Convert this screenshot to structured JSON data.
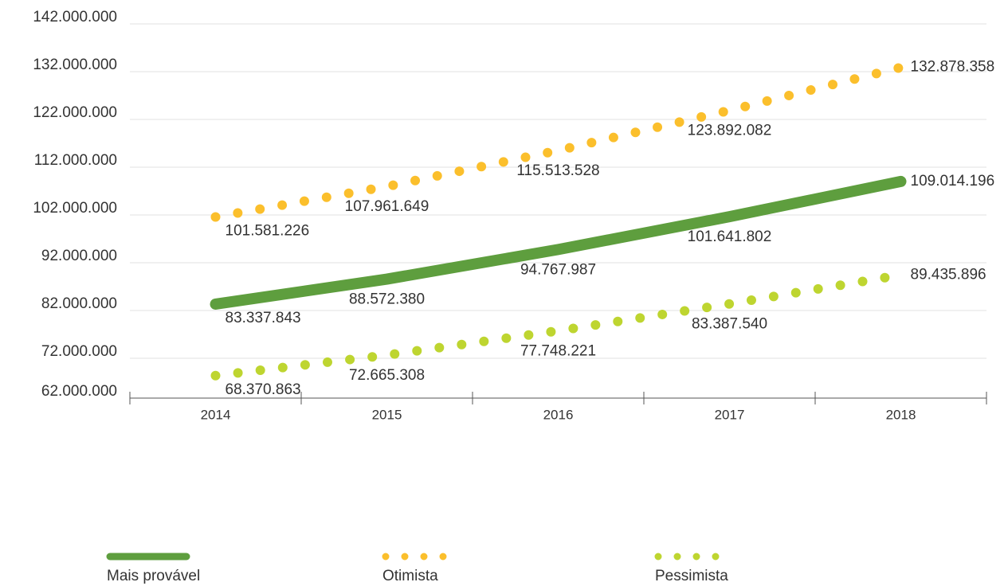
{
  "chart_data": {
    "type": "line",
    "categories": [
      "2014",
      "2015",
      "2016",
      "2017",
      "2018"
    ],
    "series": [
      {
        "name": "Mais provável",
        "color": "#5e9e3e",
        "style": "solid",
        "values": [
          83337843,
          88572380,
          94767987,
          101641802,
          109014196
        ],
        "value_labels": [
          "83.337.843",
          "88.572.380",
          "94.767.987",
          "101.641.802",
          "109.014.196"
        ]
      },
      {
        "name": "Otimista",
        "color": "#fbbf2c",
        "style": "dotted",
        "values": [
          101581226,
          107961649,
          115513528,
          123892082,
          132878358
        ],
        "value_labels": [
          "101.581.226",
          "107.961.649",
          "115.513.528",
          "123.892.082",
          "132.878.358"
        ]
      },
      {
        "name": "Pessimista",
        "color": "#bed530",
        "style": "dotted",
        "values": [
          68370863,
          72665308,
          77748221,
          83387540,
          89435896
        ],
        "value_labels": [
          "68.370.863",
          "72.665.308",
          "77.748.221",
          "83.387.540",
          "89.435.896"
        ]
      }
    ],
    "ylim": [
      62000000,
      142000000
    ],
    "yticks": [
      {
        "value": 62000000,
        "label": "62.000.000"
      },
      {
        "value": 72000000,
        "label": "72.000.000"
      },
      {
        "value": 82000000,
        "label": "82.000.000"
      },
      {
        "value": 92000000,
        "label": "92.000.000"
      },
      {
        "value": 102000000,
        "label": "102.000.000"
      },
      {
        "value": 112000000,
        "label": "112.000.000"
      },
      {
        "value": 122000000,
        "label": "122.000.000"
      },
      {
        "value": 132000000,
        "label": "132.000.000"
      },
      {
        "value": 142000000,
        "label": "142.000.000"
      }
    ],
    "grid": true,
    "legend": "bottom"
  }
}
